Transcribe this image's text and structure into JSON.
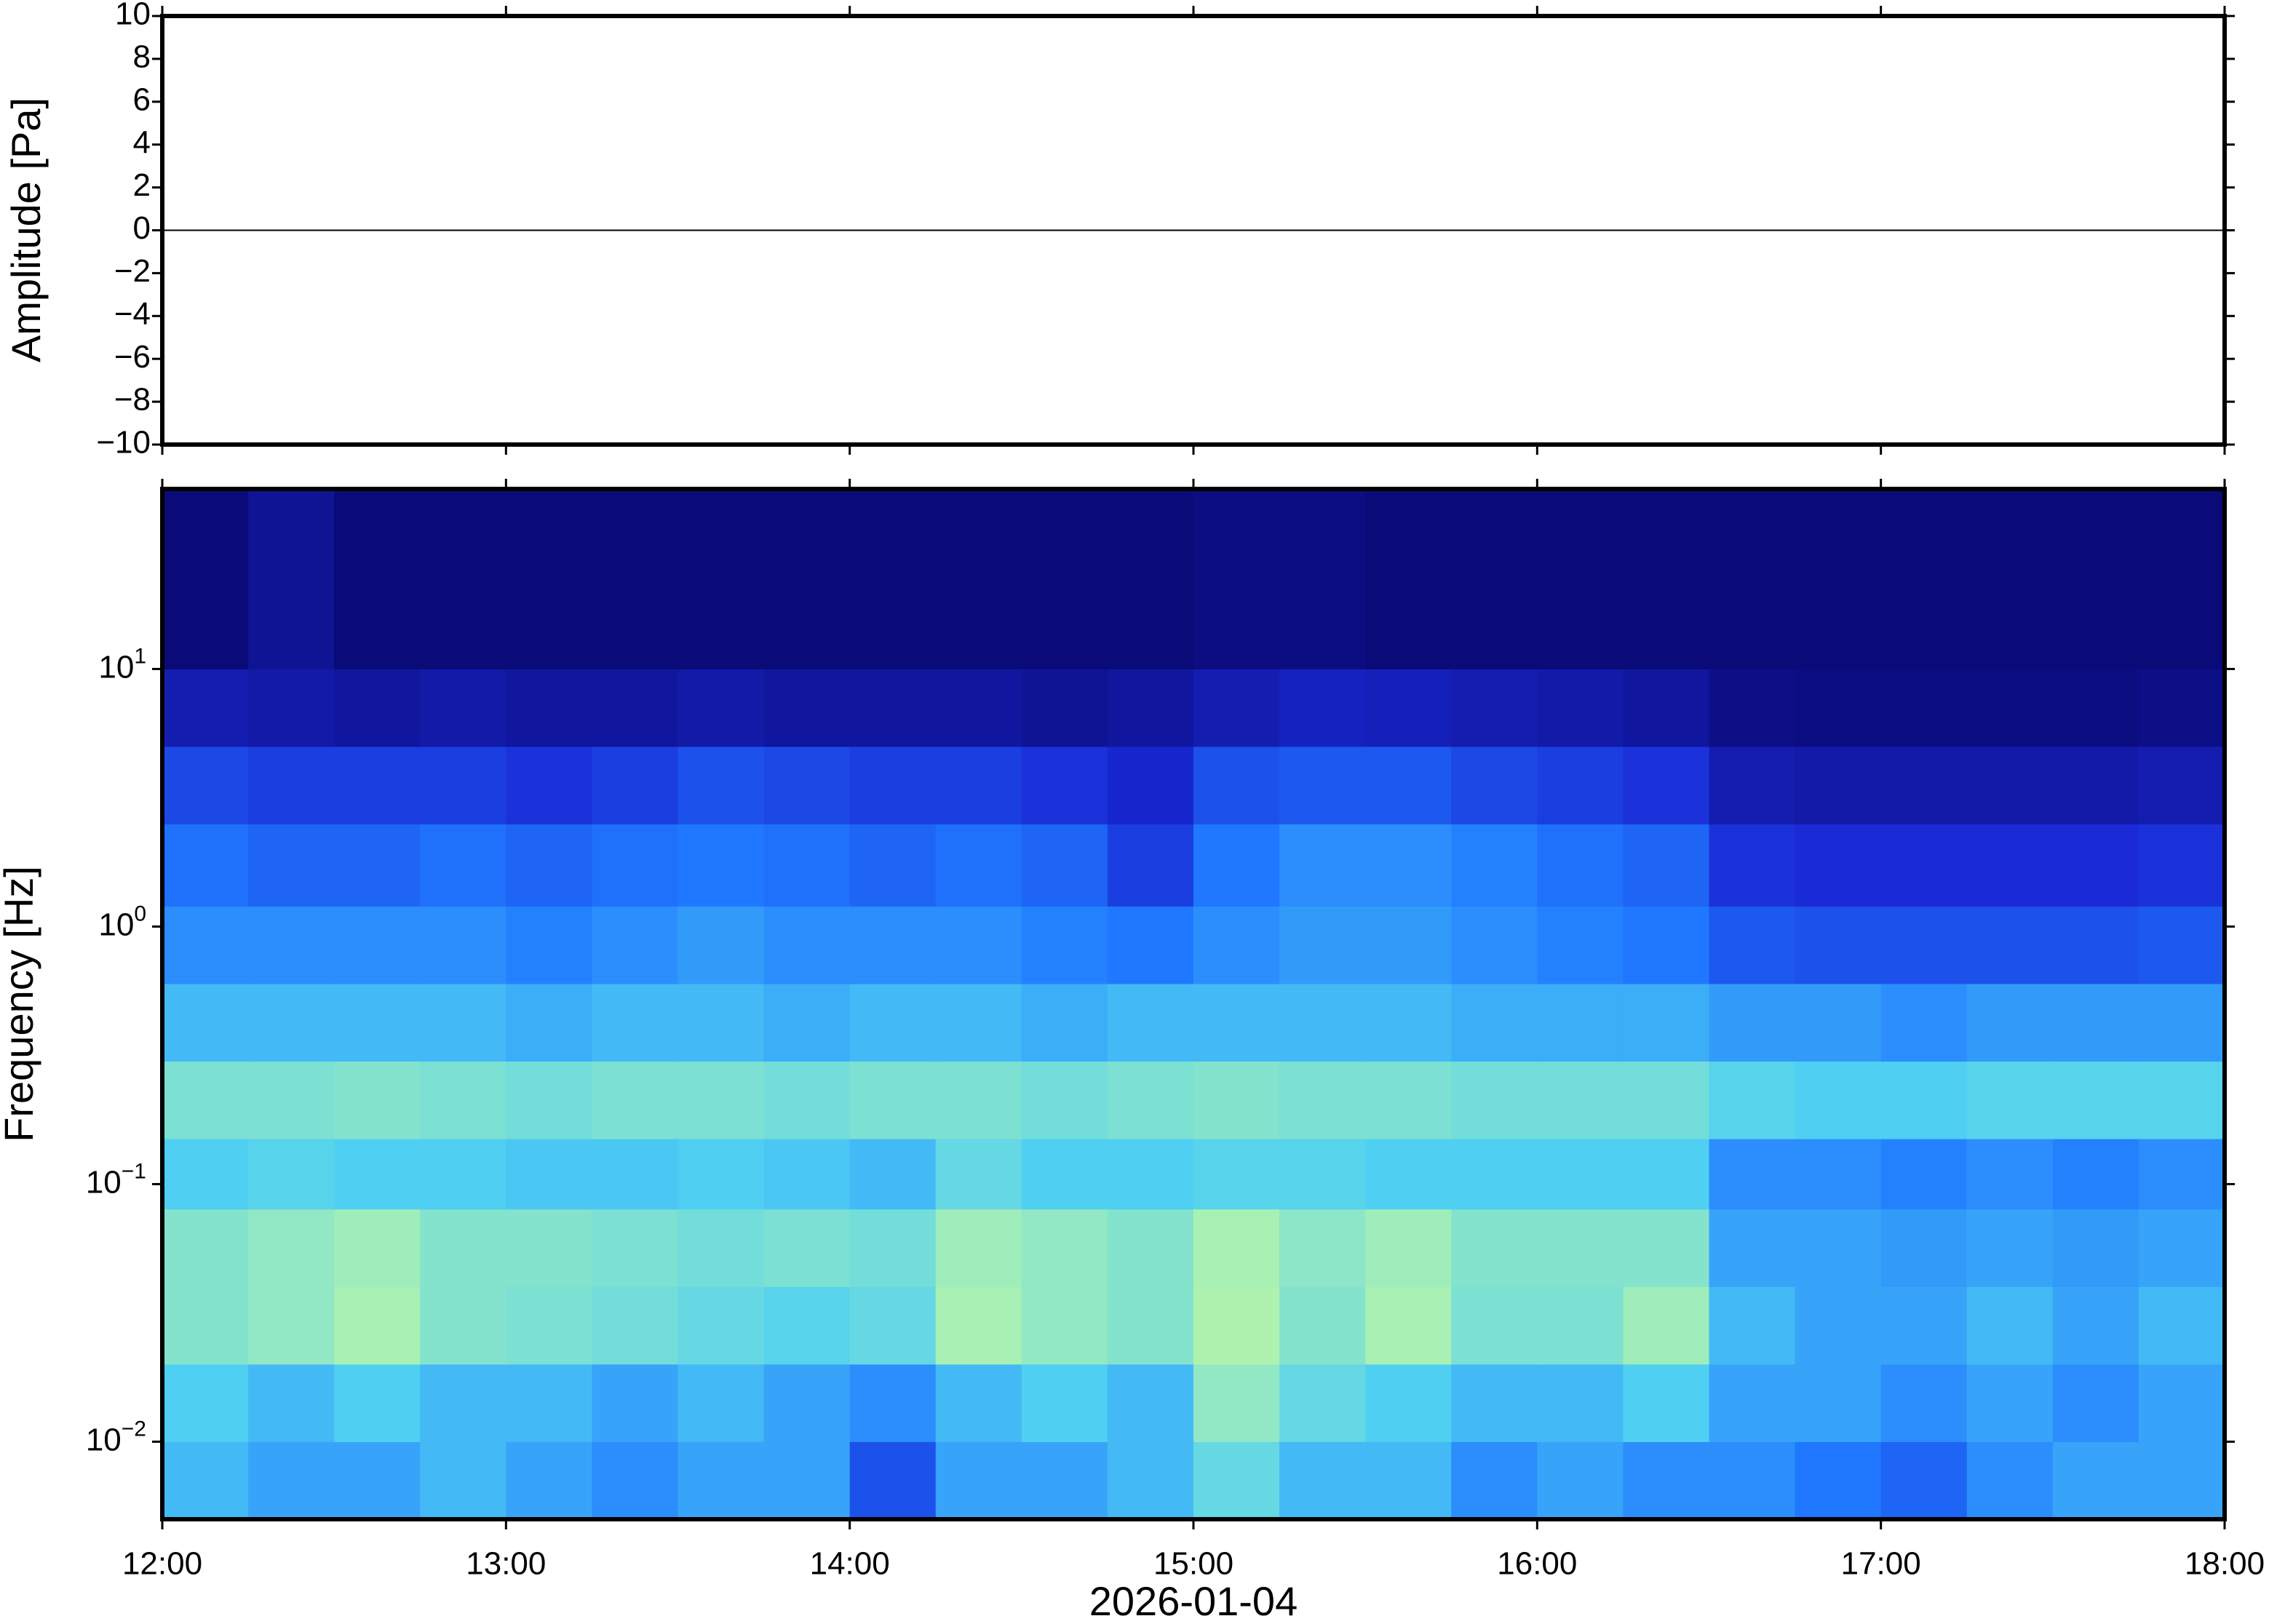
{
  "chart_data": [
    {
      "type": "line",
      "ylabel": "Amplitude [Pa]",
      "x": [
        12,
        18
      ],
      "values": [
        0,
        0
      ],
      "color": "#000000",
      "xlim": [
        12,
        18
      ],
      "ylim": [
        -10,
        10
      ],
      "yticks": [
        {
          "value": -10,
          "label": "−10"
        },
        {
          "value": -8,
          "label": "−8"
        },
        {
          "value": -6,
          "label": "−6"
        },
        {
          "value": -4,
          "label": "−4"
        },
        {
          "value": -2,
          "label": "−2"
        },
        0,
        2,
        4,
        6,
        8,
        10
      ]
    },
    {
      "type": "heatmap",
      "ylabel": "Frequency [Hz]",
      "xlabel": "2026-01-04",
      "log_y": true,
      "xlim": [
        12,
        18
      ],
      "xticks": [
        {
          "value": 12,
          "label": "12:00"
        },
        {
          "value": 13,
          "label": "13:00"
        },
        {
          "value": 14,
          "label": "14:00"
        },
        {
          "value": 15,
          "label": "15:00"
        },
        {
          "value": 16,
          "label": "16:00"
        },
        {
          "value": 17,
          "label": "17:00"
        },
        {
          "value": 18,
          "label": "18:00"
        }
      ],
      "ylim": [
        0.005,
        50
      ],
      "yticks": [
        {
          "value": 0.01,
          "label": "10",
          "exponent": "−2"
        },
        {
          "value": 0.1,
          "label": "10",
          "exponent": "−1"
        },
        {
          "value": 1,
          "label": "10",
          "exponent": "0"
        },
        {
          "value": 10,
          "label": "10",
          "exponent": "1"
        }
      ],
      "x_edges": [
        12,
        12.25,
        12.5,
        12.75,
        13,
        13.25,
        13.5,
        13.75,
        14,
        14.25,
        14.5,
        14.75,
        15,
        15.25,
        15.5,
        15.75,
        16,
        16.25,
        16.5,
        16.75,
        17,
        17.25,
        17.5,
        17.75,
        18
      ],
      "y_edges": [
        0.005,
        0.01,
        0.02,
        0.04,
        0.08,
        0.15,
        0.3,
        0.6,
        1.2,
        2.5,
        5,
        10,
        50
      ],
      "zlim": [
        0,
        1
      ],
      "colormap": [
        "#0a0a78",
        "#1a2ad6",
        "#1f78ff",
        "#4fd0f2",
        "#a8f0b4",
        "#f0ff8c"
      ],
      "z": [
        [
          0.55,
          0.5,
          0.5,
          0.55,
          0.5,
          0.45,
          0.5,
          0.5,
          0.3,
          0.5,
          0.5,
          0.55,
          0.65,
          0.55,
          0.55,
          0.45,
          0.5,
          0.45,
          0.45,
          0.4,
          0.35,
          0.45,
          0.5,
          0.5
        ],
        [
          0.6,
          0.55,
          0.6,
          0.55,
          0.55,
          0.5,
          0.55,
          0.5,
          0.45,
          0.55,
          0.6,
          0.55,
          0.75,
          0.65,
          0.6,
          0.55,
          0.55,
          0.6,
          0.5,
          0.5,
          0.45,
          0.5,
          0.45,
          0.5
        ],
        [
          0.72,
          0.75,
          0.8,
          0.72,
          0.7,
          0.68,
          0.65,
          0.62,
          0.65,
          0.8,
          0.75,
          0.72,
          0.82,
          0.72,
          0.8,
          0.7,
          0.7,
          0.78,
          0.55,
          0.5,
          0.5,
          0.55,
          0.5,
          0.55
        ],
        [
          0.72,
          0.75,
          0.78,
          0.72,
          0.72,
          0.7,
          0.68,
          0.7,
          0.68,
          0.78,
          0.75,
          0.72,
          0.8,
          0.74,
          0.78,
          0.72,
          0.72,
          0.72,
          0.5,
          0.5,
          0.48,
          0.5,
          0.48,
          0.5
        ],
        [
          0.6,
          0.62,
          0.6,
          0.6,
          0.58,
          0.58,
          0.6,
          0.58,
          0.55,
          0.65,
          0.6,
          0.6,
          0.62,
          0.62,
          0.6,
          0.6,
          0.6,
          0.6,
          0.45,
          0.45,
          0.42,
          0.45,
          0.42,
          0.45
        ],
        [
          0.7,
          0.7,
          0.72,
          0.7,
          0.68,
          0.7,
          0.7,
          0.68,
          0.7,
          0.7,
          0.68,
          0.7,
          0.72,
          0.7,
          0.7,
          0.68,
          0.68,
          0.68,
          0.62,
          0.6,
          0.6,
          0.62,
          0.62,
          0.62
        ],
        [
          0.55,
          0.55,
          0.55,
          0.55,
          0.52,
          0.55,
          0.55,
          0.52,
          0.55,
          0.55,
          0.52,
          0.55,
          0.55,
          0.55,
          0.55,
          0.52,
          0.52,
          0.52,
          0.48,
          0.48,
          0.45,
          0.48,
          0.48,
          0.48
        ],
        [
          0.45,
          0.45,
          0.45,
          0.45,
          0.42,
          0.45,
          0.48,
          0.45,
          0.45,
          0.45,
          0.42,
          0.4,
          0.45,
          0.48,
          0.48,
          0.45,
          0.42,
          0.4,
          0.32,
          0.3,
          0.3,
          0.3,
          0.3,
          0.32
        ],
        [
          0.38,
          0.35,
          0.35,
          0.38,
          0.35,
          0.38,
          0.4,
          0.38,
          0.35,
          0.38,
          0.35,
          0.25,
          0.4,
          0.45,
          0.45,
          0.42,
          0.38,
          0.35,
          0.22,
          0.2,
          0.2,
          0.2,
          0.2,
          0.22
        ],
        [
          0.28,
          0.25,
          0.25,
          0.25,
          0.22,
          0.25,
          0.3,
          0.28,
          0.25,
          0.25,
          0.22,
          0.18,
          0.3,
          0.32,
          0.32,
          0.28,
          0.25,
          0.22,
          0.12,
          0.1,
          0.1,
          0.1,
          0.1,
          0.12
        ],
        [
          0.12,
          0.1,
          0.08,
          0.1,
          0.08,
          0.08,
          0.1,
          0.08,
          0.08,
          0.08,
          0.06,
          0.08,
          0.12,
          0.15,
          0.14,
          0.12,
          0.1,
          0.08,
          0.03,
          0.02,
          0.02,
          0.02,
          0.02,
          0.03
        ],
        [
          0,
          0.06,
          0,
          0,
          0,
          0,
          0,
          0,
          0,
          0,
          0,
          0,
          0.02,
          0.02,
          0,
          0,
          0,
          0,
          0,
          0,
          0,
          0,
          0,
          0
        ]
      ]
    }
  ]
}
